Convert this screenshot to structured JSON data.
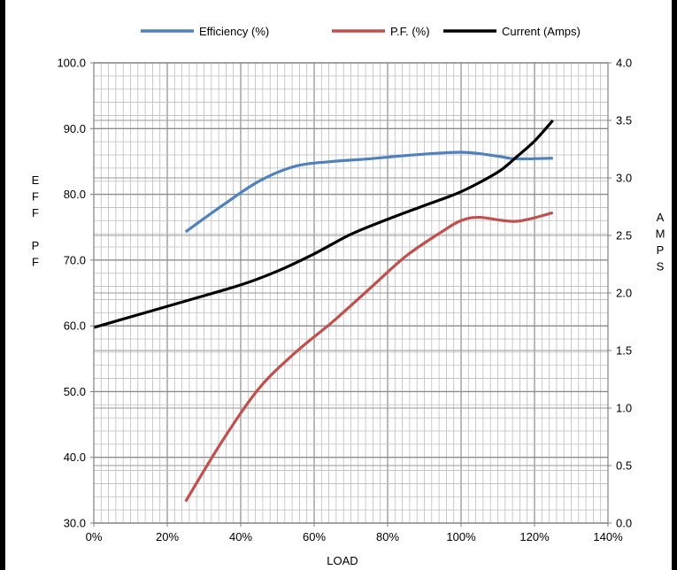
{
  "chart_data": {
    "type": "line",
    "xlabel": "LOAD",
    "ylabel_left_letters": [
      "E",
      "F",
      "F",
      "",
      "P",
      "F"
    ],
    "ylabel_right_letters": [
      "A",
      "M",
      "P",
      "S"
    ],
    "x_range": [
      0,
      140
    ],
    "x_ticks": [
      "0%",
      "20%",
      "40%",
      "60%",
      "80%",
      "100%",
      "120%",
      "140%"
    ],
    "y_left_range": [
      30,
      100
    ],
    "y_left_ticks": [
      "30.0",
      "40.0",
      "50.0",
      "60.0",
      "70.0",
      "80.0",
      "90.0",
      "100.0"
    ],
    "y_right_range": [
      0,
      4
    ],
    "y_right_ticks": [
      "0.0",
      "0.5",
      "1.0",
      "1.5",
      "2.0",
      "2.5",
      "3.0",
      "3.5",
      "4.0"
    ],
    "grid": true,
    "legend_position": "top",
    "series": [
      {
        "name": "Efficiency (%)",
        "axis": "left",
        "color": "#4F81BD",
        "x": [
          25,
          35,
          45,
          55,
          65,
          75,
          85,
          100,
          110,
          115,
          125
        ],
        "y": [
          74.3,
          78.3,
          82.0,
          84.3,
          85.0,
          85.4,
          85.9,
          86.4,
          85.8,
          85.4,
          85.5
        ]
      },
      {
        "name": "P.F. (%)",
        "axis": "left",
        "color": "#C0504D",
        "x": [
          25,
          35,
          45,
          55,
          65,
          75,
          85,
          95,
          100,
          105,
          115,
          125
        ],
        "y": [
          33.3,
          42.5,
          50.5,
          56.0,
          60.6,
          65.6,
          70.6,
          74.4,
          76.0,
          76.5,
          75.9,
          77.2
        ]
      },
      {
        "name": "Current (Amps)",
        "axis": "right",
        "color": "#000000",
        "x": [
          0,
          25,
          40,
          50,
          60,
          70,
          80,
          90,
          100,
          110,
          115,
          120,
          125
        ],
        "y": [
          1.7,
          1.93,
          2.07,
          2.19,
          2.34,
          2.51,
          2.64,
          2.76,
          2.88,
          3.05,
          3.18,
          3.32,
          3.5
        ]
      }
    ]
  }
}
